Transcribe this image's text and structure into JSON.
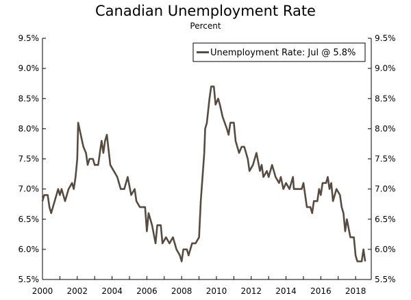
{
  "chart_data": {
    "type": "line",
    "title": "Canadian Unemployment Rate",
    "subtitle": "Percent",
    "xlim": [
      2000,
      2018.9
    ],
    "ylim": [
      5.5,
      9.5
    ],
    "x_ticks": [
      "2000",
      "2002",
      "2004",
      "2006",
      "2008",
      "2010",
      "2012",
      "2014",
      "2016",
      "2018"
    ],
    "y_ticks": [
      "5.5%",
      "6.0%",
      "6.5%",
      "7.0%",
      "7.5%",
      "8.0%",
      "8.5%",
      "9.0%",
      "9.5%"
    ],
    "grid": false,
    "legend_placement": "top-right",
    "line_color": "#574b40",
    "series": [
      {
        "name": "Unemployment Rate: Jul @ 5.8%",
        "x": [
          2000.0,
          2000.1,
          2000.3,
          2000.4,
          2000.5,
          2000.7,
          2000.9,
          2001.0,
          2001.1,
          2001.3,
          2001.5,
          2001.7,
          2001.8,
          2001.9,
          2002.0,
          2002.05,
          2002.2,
          2002.35,
          2002.5,
          2002.6,
          2002.7,
          2002.9,
          2003.0,
          2003.2,
          2003.4,
          2003.5,
          2003.6,
          2003.7,
          2003.9,
          2004.1,
          2004.3,
          2004.4,
          2004.5,
          2004.7,
          2004.9,
          2005.1,
          2005.3,
          2005.4,
          2005.6,
          2005.9,
          2006.0,
          2006.1,
          2006.3,
          2006.5,
          2006.6,
          2006.8,
          2006.9,
          2007.1,
          2007.3,
          2007.5,
          2007.7,
          2007.9,
          2008.0,
          2008.1,
          2008.3,
          2008.4,
          2008.6,
          2008.8,
          2009.0,
          2009.1,
          2009.3,
          2009.35,
          2009.45,
          2009.6,
          2009.7,
          2009.85,
          2009.95,
          2010.1,
          2010.2,
          2010.35,
          2010.6,
          2010.7,
          2010.8,
          2011.0,
          2011.1,
          2011.3,
          2011.45,
          2011.6,
          2011.8,
          2011.9,
          2012.1,
          2012.2,
          2012.3,
          2012.5,
          2012.6,
          2012.7,
          2012.9,
          2013.0,
          2013.2,
          2013.4,
          2013.6,
          2013.7,
          2013.85,
          2014.0,
          2014.2,
          2014.4,
          2014.45,
          2014.6,
          2014.9,
          2015.0,
          2015.1,
          2015.2,
          2015.4,
          2015.5,
          2015.6,
          2015.8,
          2015.9,
          2016.0,
          2016.1,
          2016.3,
          2016.4,
          2016.5,
          2016.6,
          2016.7,
          2016.9,
          2017.1,
          2017.2,
          2017.3,
          2017.4,
          2017.5,
          2017.7,
          2017.9,
          2018.0,
          2018.1,
          2018.2,
          2018.35,
          2018.45,
          2018.55
        ],
        "values": [
          6.8,
          6.9,
          6.9,
          6.7,
          6.6,
          6.8,
          7.0,
          6.9,
          7.0,
          6.8,
          7.0,
          7.1,
          7.0,
          7.2,
          7.5,
          8.1,
          7.9,
          7.7,
          7.6,
          7.4,
          7.5,
          7.5,
          7.4,
          7.4,
          7.8,
          7.6,
          7.8,
          7.9,
          7.4,
          7.3,
          7.2,
          7.1,
          7.0,
          7.0,
          7.2,
          6.9,
          7.0,
          6.8,
          6.7,
          6.7,
          6.3,
          6.6,
          6.4,
          6.1,
          6.4,
          6.4,
          6.1,
          6.2,
          6.1,
          6.2,
          6.0,
          5.9,
          5.8,
          6.0,
          6.0,
          5.9,
          6.1,
          6.1,
          6.2,
          6.8,
          7.6,
          8.0,
          8.1,
          8.5,
          8.7,
          8.7,
          8.4,
          8.5,
          8.4,
          8.2,
          8.0,
          7.9,
          8.1,
          8.1,
          7.8,
          7.6,
          7.7,
          7.7,
          7.5,
          7.3,
          7.4,
          7.5,
          7.6,
          7.3,
          7.4,
          7.2,
          7.3,
          7.2,
          7.4,
          7.2,
          7.1,
          7.2,
          7.0,
          7.1,
          7.0,
          7.2,
          7.0,
          7.0,
          7.0,
          7.1,
          6.9,
          6.7,
          6.7,
          6.6,
          6.8,
          6.8,
          7.0,
          6.9,
          7.1,
          7.1,
          7.2,
          7.0,
          7.1,
          6.8,
          7.0,
          6.9,
          6.7,
          6.6,
          6.3,
          6.5,
          6.2,
          6.2,
          5.9,
          5.8,
          5.8,
          5.8,
          6.0,
          5.8
        ]
      }
    ]
  }
}
